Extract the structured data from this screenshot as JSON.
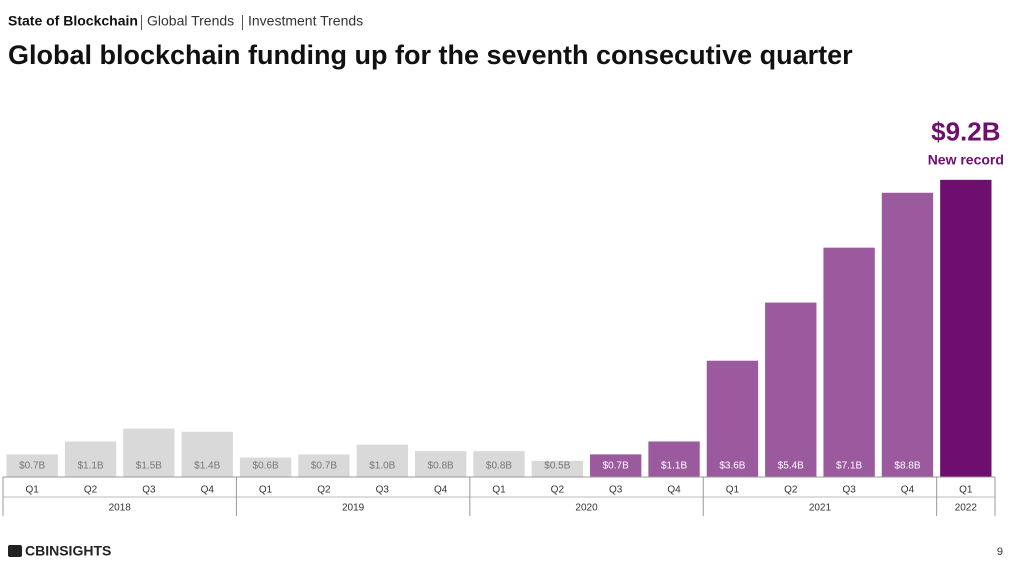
{
  "header": {
    "breadcrumb": [
      "State of Blockchain",
      "Global Trends",
      "Investment Trends"
    ]
  },
  "chart_data": {
    "type": "bar",
    "title": "Global blockchain funding up for the seventh consecutive quarter",
    "categories": [
      "Q1",
      "Q2",
      "Q3",
      "Q4",
      "Q1",
      "Q2",
      "Q3",
      "Q4",
      "Q1",
      "Q2",
      "Q3",
      "Q4",
      "Q1",
      "Q2",
      "Q3",
      "Q4",
      "Q1"
    ],
    "years": [
      "2018",
      "2018",
      "2018",
      "2018",
      "2019",
      "2019",
      "2019",
      "2019",
      "2020",
      "2020",
      "2020",
      "2020",
      "2021",
      "2021",
      "2021",
      "2021",
      "2022"
    ],
    "values": [
      0.7,
      1.1,
      1.5,
      1.4,
      0.6,
      0.7,
      1.0,
      0.8,
      0.8,
      0.5,
      0.7,
      1.1,
      3.6,
      5.4,
      7.1,
      8.8,
      9.2
    ],
    "value_labels": [
      "$0.7B",
      "$1.1B",
      "$1.5B",
      "$1.4B",
      "$0.6B",
      "$0.7B",
      "$1.0B",
      "$0.8B",
      "$0.8B",
      "$0.5B",
      "$0.7B",
      "$1.1B",
      "$3.6B",
      "$5.4B",
      "$7.1B",
      "$8.8B",
      "$9.2B"
    ],
    "colors": [
      "#d9d9d9",
      "#d9d9d9",
      "#d9d9d9",
      "#d9d9d9",
      "#d9d9d9",
      "#d9d9d9",
      "#d9d9d9",
      "#d9d9d9",
      "#d9d9d9",
      "#d9d9d9",
      "#9b5a9e",
      "#9b5a9e",
      "#9b5a9e",
      "#9b5a9e",
      "#9b5a9e",
      "#9b5a9e",
      "#6e0f6f"
    ],
    "value_label_colors": [
      "#777777",
      "#777777",
      "#777777",
      "#777777",
      "#777777",
      "#777777",
      "#777777",
      "#777777",
      "#777777",
      "#777777",
      "#ffffff",
      "#ffffff",
      "#ffffff",
      "#ffffff",
      "#ffffff",
      "#ffffff",
      "#6e0f6f"
    ],
    "annotation": "New record",
    "ylim": [
      0,
      10
    ]
  },
  "footer": {
    "logo": "CBINSIGHTS",
    "page": "9"
  }
}
